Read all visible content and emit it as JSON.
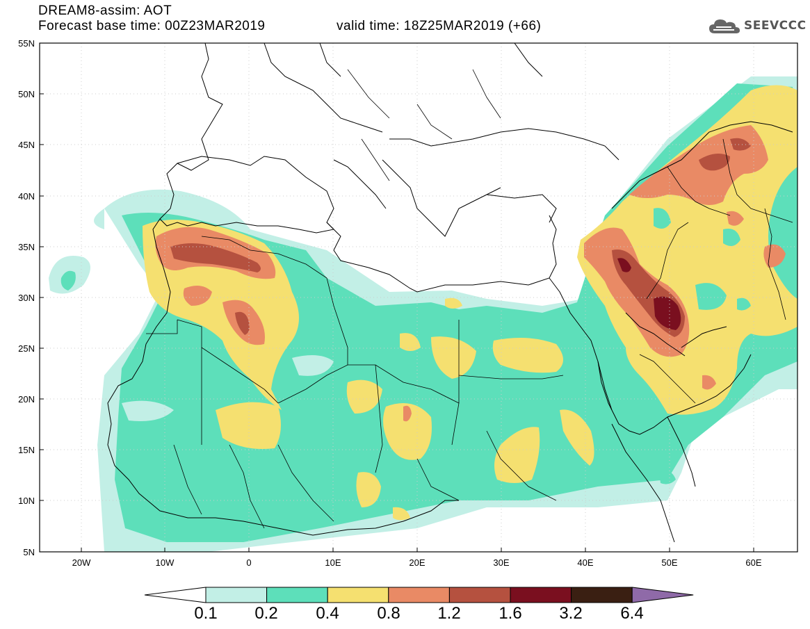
{
  "header": {
    "title_line1": "DREAM8-assim: AOT",
    "title_line2": "Forecast base time: 00Z23MAR2019",
    "valid_time": "valid time: 18Z25MAR2019 (+66)",
    "logo_text": "SEEVCCC"
  },
  "map": {
    "lat_labels": [
      "55N",
      "50N",
      "45N",
      "40N",
      "35N",
      "30N",
      "25N",
      "20N",
      "15N",
      "10N",
      "5N"
    ],
    "lon_labels": [
      "20W",
      "10W",
      "0",
      "10E",
      "20E",
      "30E",
      "40E",
      "50E",
      "60E"
    ],
    "lon_range": [
      -25,
      65
    ],
    "lat_range": [
      5,
      55
    ]
  },
  "legend": {
    "thresholds": [
      "0.1",
      "0.2",
      "0.4",
      "0.8",
      "1.2",
      "1.6",
      "3.2",
      "6.4"
    ],
    "colors": [
      "#ffffff",
      "#c2efe6",
      "#5ddfba",
      "#f5e070",
      "#e98a65",
      "#b5513f",
      "#7a0f1f",
      "#3a1f12",
      "#8f6aa8"
    ]
  }
}
